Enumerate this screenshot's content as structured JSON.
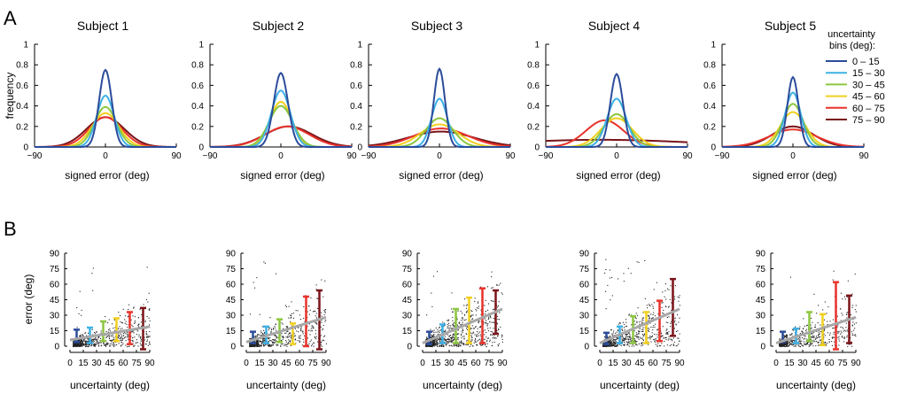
{
  "figure": {
    "panel_labels": [
      "A",
      "B"
    ],
    "legend_title": [
      "uncertainty",
      "bins (deg):"
    ],
    "colors": {
      "gray_fit": "#a8a8a8",
      "scatter": "#222222"
    }
  },
  "chart_data": [
    {
      "type": "line",
      "panel": "A",
      "xlabel": "signed error  (deg)",
      "ylabel": "frequency",
      "xlim": [
        -90,
        90
      ],
      "ylim": [
        0,
        1
      ],
      "xticks": [
        "−90",
        "0",
        "90"
      ],
      "yticks": [
        "0",
        "0.2",
        "0.4",
        "0.6",
        "0.8",
        "1"
      ],
      "legend": {
        "title": "uncertainty bins (deg):",
        "entries": [
          "0 – 15",
          "15 – 30",
          "30 – 45",
          "45 – 60",
          "60 – 75",
          "75 – 90"
        ],
        "colors": [
          "#2b4c9a",
          "#3db1e6",
          "#8dc63f",
          "#f2d01e",
          "#e8332b",
          "#7a1419"
        ],
        "placement": "right"
      },
      "subjects": [
        {
          "title": "Subject 1",
          "peaks": [
            0.75,
            0.5,
            0.39,
            0.33,
            0.29,
            0.29
          ],
          "widths": [
            8,
            11,
            14,
            17,
            21,
            24
          ],
          "centers": [
            0,
            0,
            0,
            0,
            0,
            0
          ]
        },
        {
          "title": "Subject 2",
          "peaks": [
            0.72,
            0.55,
            0.4,
            0.44,
            0.2,
            0.2
          ],
          "widths": [
            9,
            12,
            15,
            14,
            28,
            30
          ],
          "centers": [
            0,
            0,
            0,
            0,
            8,
            10
          ]
        },
        {
          "title": "Subject 3",
          "peaks": [
            0.76,
            0.47,
            0.28,
            0.22,
            0.18,
            0.15
          ],
          "widths": [
            7,
            10,
            17,
            24,
            34,
            42
          ],
          "centers": [
            0,
            0,
            0,
            0,
            2,
            2
          ]
        },
        {
          "title": "Subject 4",
          "peaks": [
            0.71,
            0.47,
            0.32,
            0.28,
            0.26,
            0.07
          ],
          "widths": [
            8,
            12,
            16,
            20,
            24,
            120
          ],
          "centers": [
            0,
            0,
            0,
            0,
            -15,
            -20
          ]
        },
        {
          "title": "Subject 5",
          "peaks": [
            0.68,
            0.53,
            0.42,
            0.34,
            0.17,
            0.2
          ],
          "widths": [
            7,
            10,
            13,
            16,
            30,
            26
          ],
          "centers": [
            0,
            0,
            0,
            0,
            0,
            0
          ]
        }
      ]
    },
    {
      "type": "scatter",
      "panel": "B",
      "xlabel": "uncertainty  (deg)",
      "ylabel": "error  (deg)",
      "xlim": [
        0,
        90
      ],
      "ylim": [
        0,
        90
      ],
      "xticks": [
        "0",
        "15",
        "30",
        "45",
        "60",
        "75",
        "90"
      ],
      "yticks": [
        "0",
        "15",
        "30",
        "45",
        "60",
        "75",
        "90"
      ],
      "bin_centers": [
        7.5,
        22.5,
        37.5,
        52.5,
        67.5,
        82.5
      ],
      "colors": [
        "#2b4c9a",
        "#3db1e6",
        "#8dc63f",
        "#f2d01e",
        "#e8332b",
        "#7a1419"
      ],
      "subjects": [
        {
          "errorbars": [
            [
              4,
              16
            ],
            [
              3,
              18
            ],
            [
              5,
              24
            ],
            [
              5,
              27
            ],
            [
              2,
              33
            ],
            [
              -3,
              37
            ]
          ],
          "fit": [
            [
              0,
              6
            ],
            [
              90,
              19
            ]
          ],
          "point_count": 700
        },
        {
          "errorbars": [
            [
              3,
              14
            ],
            [
              3,
              19
            ],
            [
              4,
              26
            ],
            [
              2,
              22
            ],
            [
              0,
              48
            ],
            [
              -3,
              54
            ]
          ],
          "fit": [
            [
              0,
              4
            ],
            [
              90,
              28
            ]
          ],
          "point_count": 650
        },
        {
          "errorbars": [
            [
              2,
              14
            ],
            [
              3,
              21
            ],
            [
              3,
              36
            ],
            [
              3,
              47
            ],
            [
              3,
              56
            ],
            [
              12,
              54
            ]
          ],
          "fit": [
            [
              0,
              3
            ],
            [
              90,
              36
            ]
          ],
          "point_count": 900
        },
        {
          "errorbars": [
            [
              2,
              13
            ],
            [
              3,
              19
            ],
            [
              3,
              29
            ],
            [
              3,
              33
            ],
            [
              5,
              44
            ],
            [
              10,
              65
            ]
          ],
          "fit": [
            [
              0,
              3
            ],
            [
              90,
              36
            ]
          ],
          "point_count": 750
        },
        {
          "errorbars": [
            [
              4,
              14
            ],
            [
              3,
              17
            ],
            [
              5,
              33
            ],
            [
              1,
              31
            ],
            [
              -3,
              62
            ],
            [
              3,
              49
            ]
          ],
          "fit": [
            [
              0,
              3
            ],
            [
              90,
              28
            ]
          ],
          "point_count": 600
        }
      ]
    }
  ]
}
